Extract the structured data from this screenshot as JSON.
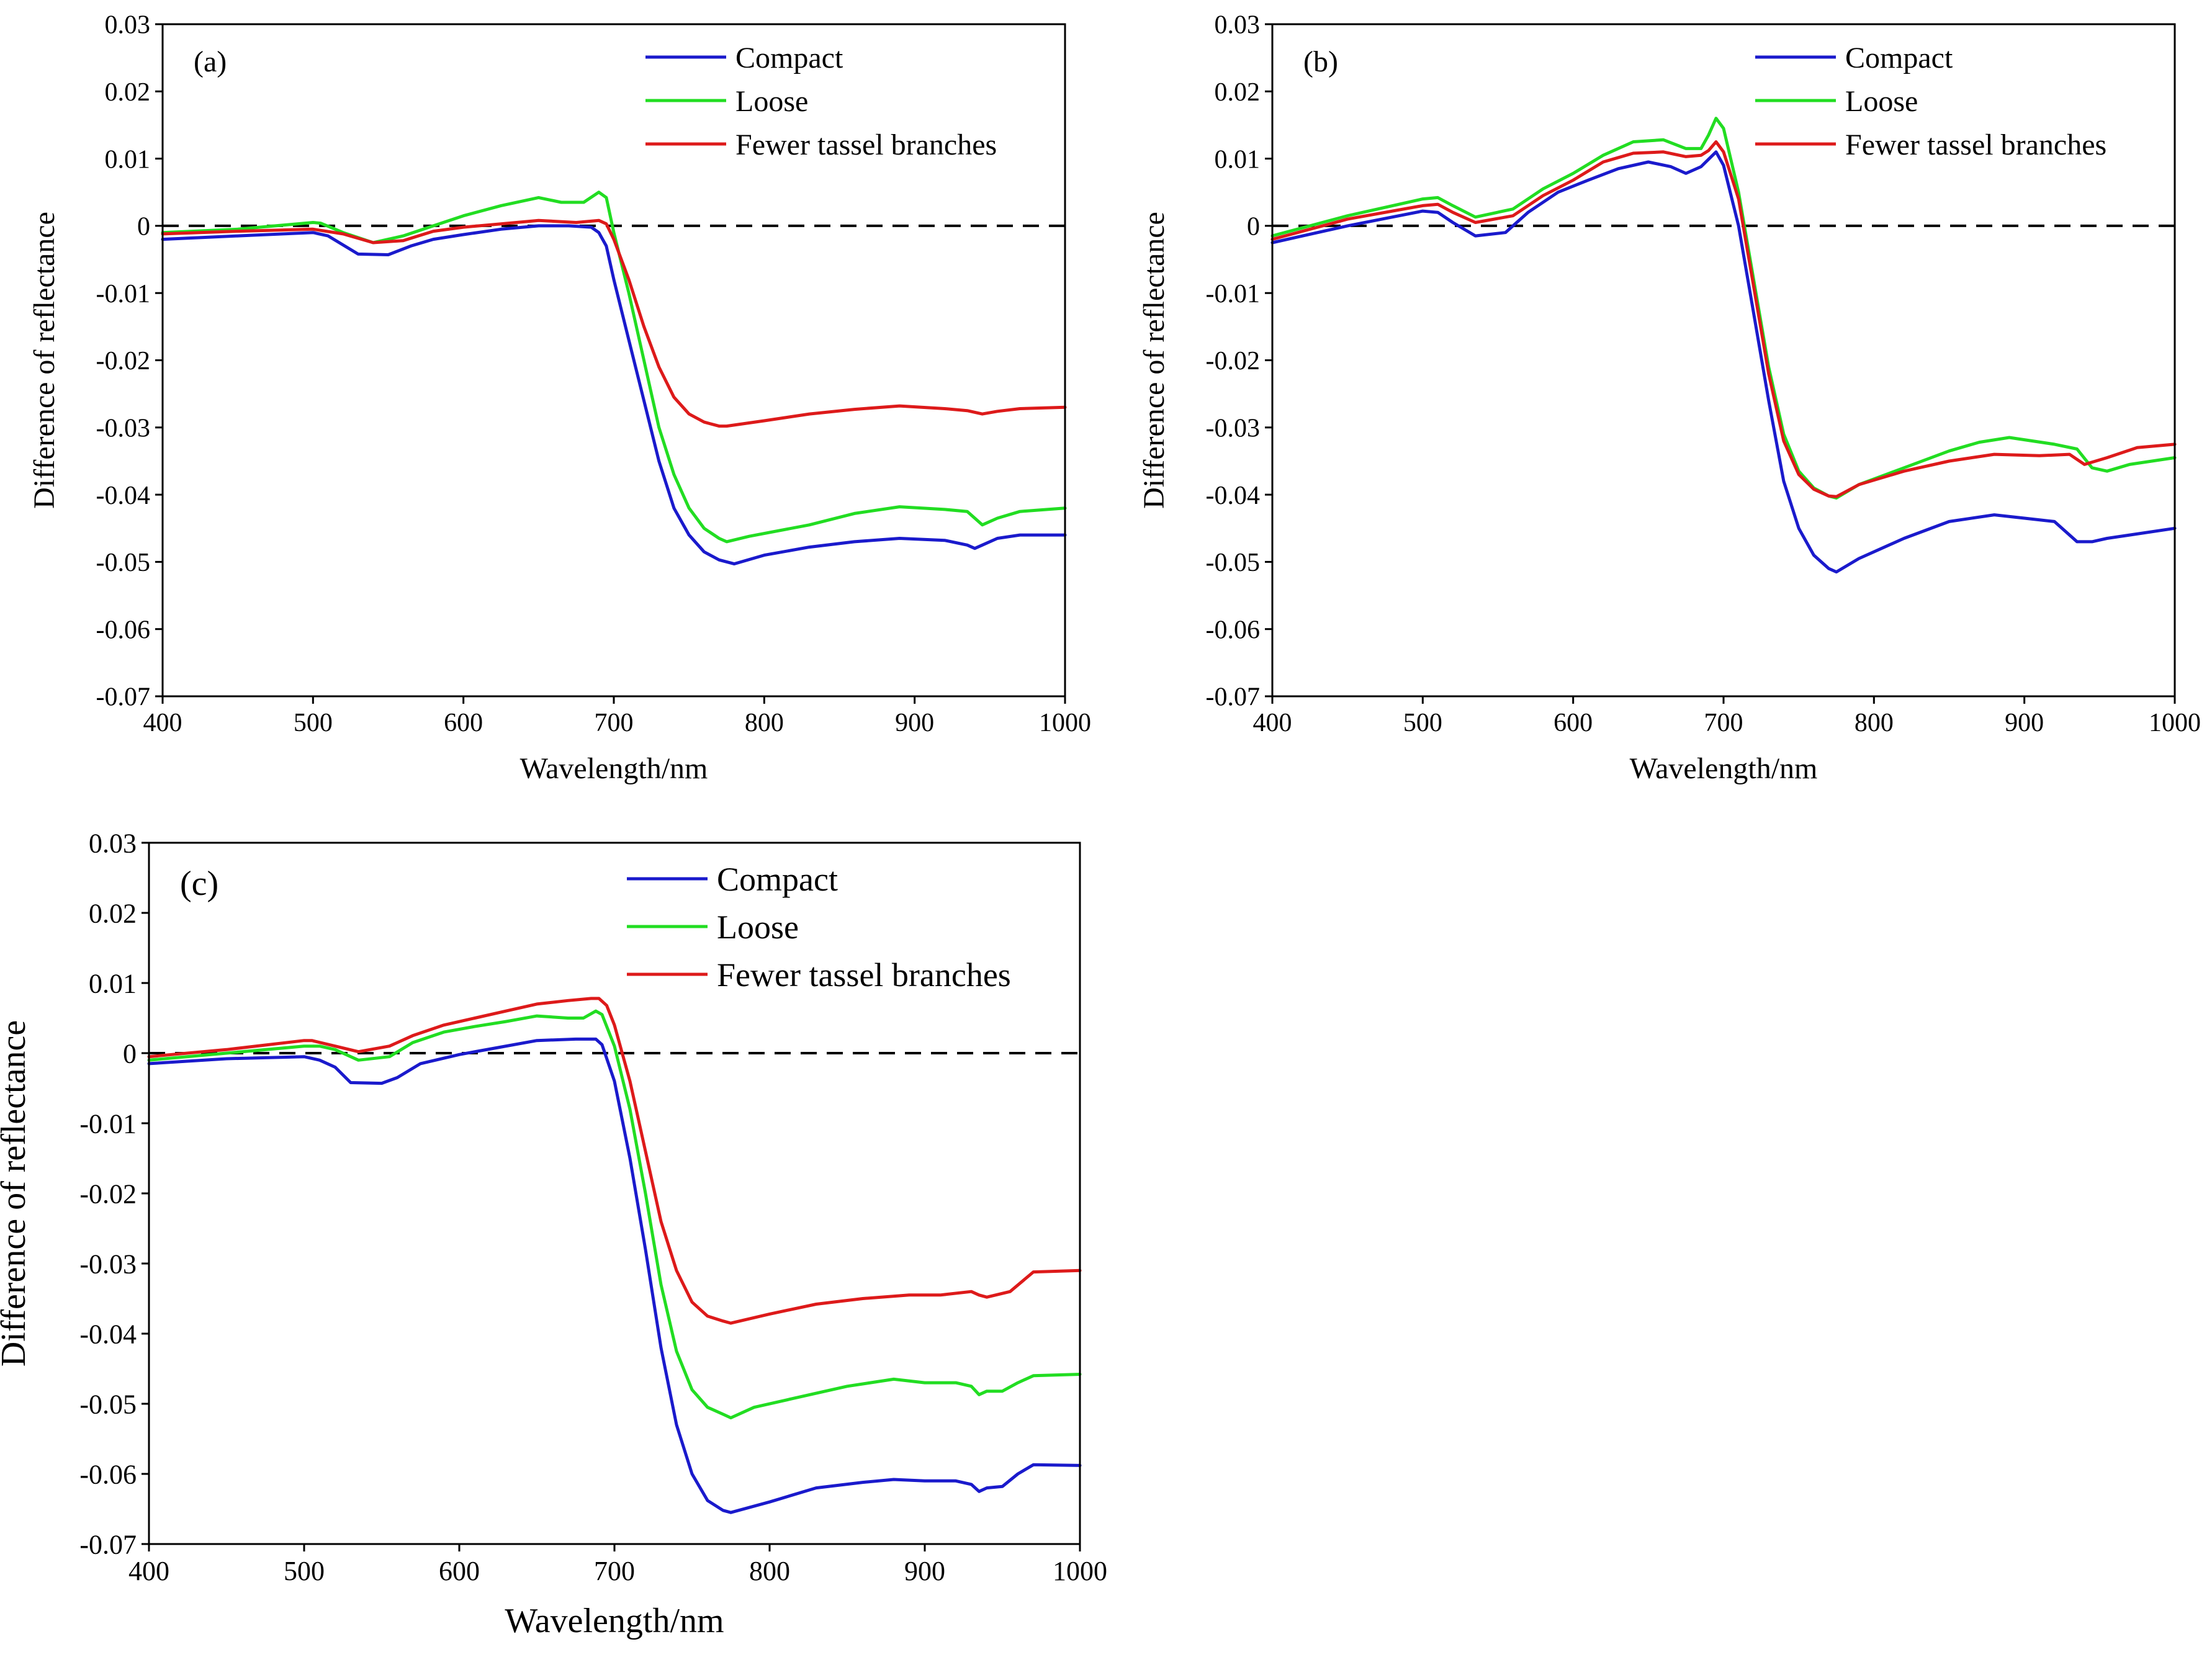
{
  "chart_data": [
    {
      "id": "a",
      "type": "line",
      "panel_label": "(a)",
      "xlabel": "Wavelength/nm",
      "ylabel": "Difference of reflectance",
      "xlim": [
        400,
        1000
      ],
      "ylim": [
        -0.07,
        0.03
      ],
      "xticks": [
        "400",
        "500",
        "600",
        "700",
        "800",
        "900",
        "1000"
      ],
      "yticks": [
        "0.03",
        "0.02",
        "0.01",
        "0",
        "-0.01",
        "-0.02",
        "-0.03",
        "-0.04",
        "-0.05",
        "-0.06",
        "-0.07"
      ],
      "reference_line_y": 0,
      "legend_position": "top-right",
      "series": [
        {
          "name": "Compact",
          "color": "#1a1acc",
          "x": [
            400,
            450,
            500,
            510,
            530,
            550,
            565,
            580,
            600,
            625,
            650,
            670,
            685,
            690,
            695,
            700,
            710,
            720,
            730,
            740,
            750,
            760,
            770,
            780,
            800,
            830,
            860,
            890,
            920,
            935,
            940,
            945,
            955,
            970,
            1000
          ],
          "y": [
            -0.002,
            -0.0015,
            -0.001,
            -0.0015,
            -0.0042,
            -0.0043,
            -0.003,
            -0.002,
            -0.0013,
            -0.0005,
            0,
            0,
            -0.0002,
            -0.001,
            -0.003,
            -0.008,
            -0.017,
            -0.026,
            -0.035,
            -0.042,
            -0.046,
            -0.0485,
            -0.0497,
            -0.0503,
            -0.049,
            -0.0478,
            -0.047,
            -0.0465,
            -0.0468,
            -0.0475,
            -0.048,
            -0.0475,
            -0.0465,
            -0.046,
            -0.046
          ]
        },
        {
          "name": "Loose",
          "color": "#22dd22",
          "x": [
            400,
            450,
            500,
            505,
            520,
            540,
            560,
            580,
            600,
            625,
            650,
            665,
            680,
            690,
            695,
            700,
            710,
            720,
            730,
            740,
            750,
            760,
            770,
            775,
            790,
            830,
            860,
            890,
            920,
            935,
            945,
            955,
            970,
            1000
          ],
          "y": [
            -0.001,
            -0.0005,
            0.0005,
            0.0004,
            -0.001,
            -0.0025,
            -0.0015,
            0,
            0.0015,
            0.003,
            0.0042,
            0.0035,
            0.0035,
            0.005,
            0.0042,
            -0.001,
            -0.01,
            -0.02,
            -0.03,
            -0.037,
            -0.042,
            -0.045,
            -0.0465,
            -0.047,
            -0.0462,
            -0.0445,
            -0.0428,
            -0.0418,
            -0.0422,
            -0.0425,
            -0.0445,
            -0.0435,
            -0.0425,
            -0.042
          ]
        },
        {
          "name": "Fewer tassel branches",
          "color": "#dd1a1a",
          "x": [
            400,
            450,
            500,
            520,
            540,
            560,
            580,
            600,
            625,
            650,
            675,
            690,
            695,
            700,
            710,
            720,
            730,
            740,
            750,
            760,
            770,
            775,
            800,
            830,
            860,
            890,
            920,
            935,
            945,
            955,
            970,
            1000
          ],
          "y": [
            -0.0012,
            -0.0008,
            -0.0005,
            -0.0012,
            -0.0025,
            -0.0022,
            -0.0008,
            -0.0002,
            0.0003,
            0.0008,
            0.0005,
            0.0008,
            0.0003,
            -0.002,
            -0.008,
            -0.015,
            -0.021,
            -0.0255,
            -0.028,
            -0.0292,
            -0.0298,
            -0.0298,
            -0.029,
            -0.028,
            -0.0273,
            -0.0268,
            -0.0272,
            -0.0275,
            -0.028,
            -0.0276,
            -0.0272,
            -0.027
          ]
        }
      ]
    },
    {
      "id": "b",
      "type": "line",
      "panel_label": "(b)",
      "xlabel": "Wavelength/nm",
      "ylabel": "Difference of reflectance",
      "xlim": [
        400,
        1000
      ],
      "ylim": [
        -0.07,
        0.03
      ],
      "xticks": [
        "400",
        "500",
        "600",
        "700",
        "800",
        "900",
        "1000"
      ],
      "yticks": [
        "0.03",
        "0.02",
        "0.01",
        "0",
        "-0.01",
        "-0.02",
        "-0.03",
        "-0.04",
        "-0.05",
        "-0.06",
        "-0.07"
      ],
      "reference_line_y": 0,
      "legend_position": "top-right",
      "series": [
        {
          "name": "Compact",
          "color": "#1a1acc",
          "x": [
            400,
            450,
            500,
            510,
            520,
            535,
            555,
            570,
            590,
            610,
            630,
            650,
            665,
            675,
            685,
            695,
            700,
            710,
            720,
            730,
            740,
            750,
            760,
            770,
            775,
            790,
            820,
            850,
            880,
            900,
            920,
            935,
            945,
            955,
            970,
            1000
          ],
          "y": [
            -0.0025,
            0,
            0.0022,
            0.002,
            0.0005,
            -0.0015,
            -0.001,
            0.002,
            0.005,
            0.0068,
            0.0085,
            0.0095,
            0.0088,
            0.0078,
            0.0088,
            0.011,
            0.009,
            0,
            -0.013,
            -0.026,
            -0.038,
            -0.045,
            -0.049,
            -0.051,
            -0.0515,
            -0.0495,
            -0.0465,
            -0.044,
            -0.043,
            -0.0435,
            -0.044,
            -0.047,
            -0.047,
            -0.0465,
            -0.046,
            -0.045
          ]
        },
        {
          "name": "Loose",
          "color": "#22dd22",
          "x": [
            400,
            450,
            500,
            510,
            520,
            535,
            560,
            580,
            600,
            620,
            640,
            660,
            675,
            685,
            690,
            695,
            700,
            710,
            720,
            730,
            740,
            750,
            760,
            770,
            775,
            790,
            820,
            850,
            870,
            890,
            920,
            935,
            945,
            955,
            970,
            1000
          ],
          "y": [
            -0.0015,
            0.0015,
            0.004,
            0.0042,
            0.003,
            0.0013,
            0.0025,
            0.0055,
            0.0078,
            0.0105,
            0.0125,
            0.0128,
            0.0115,
            0.0115,
            0.0135,
            0.016,
            0.0145,
            0.005,
            -0.008,
            -0.021,
            -0.031,
            -0.0365,
            -0.039,
            -0.0402,
            -0.0405,
            -0.0385,
            -0.036,
            -0.0335,
            -0.0322,
            -0.0315,
            -0.0325,
            -0.0332,
            -0.036,
            -0.0365,
            -0.0355,
            -0.0345
          ]
        },
        {
          "name": "Fewer tassel branches",
          "color": "#dd1a1a",
          "x": [
            400,
            450,
            500,
            510,
            520,
            535,
            560,
            580,
            600,
            620,
            640,
            660,
            675,
            685,
            690,
            695,
            700,
            710,
            720,
            730,
            740,
            750,
            760,
            770,
            775,
            790,
            820,
            850,
            880,
            910,
            930,
            940,
            955,
            975,
            1000
          ],
          "y": [
            -0.002,
            0.001,
            0.003,
            0.0032,
            0.002,
            0.0005,
            0.0015,
            0.0045,
            0.0068,
            0.0095,
            0.0108,
            0.011,
            0.0103,
            0.0105,
            0.0112,
            0.0125,
            0.011,
            0.004,
            -0.009,
            -0.022,
            -0.032,
            -0.037,
            -0.0392,
            -0.0402,
            -0.0403,
            -0.0385,
            -0.0365,
            -0.035,
            -0.034,
            -0.0342,
            -0.034,
            -0.0355,
            -0.0345,
            -0.033,
            -0.0325
          ]
        }
      ]
    },
    {
      "id": "c",
      "type": "line",
      "panel_label": "(c)",
      "xlabel": "Wavelength/nm",
      "ylabel": "Difference of reflectance",
      "xlim": [
        400,
        1000
      ],
      "ylim": [
        -0.07,
        0.03
      ],
      "xticks": [
        "400",
        "500",
        "600",
        "700",
        "800",
        "900",
        "1000"
      ],
      "yticks": [
        "0.03",
        "0.02",
        "0.01",
        "0",
        "-0.01",
        "-0.02",
        "-0.03",
        "-0.04",
        "-0.05",
        "-0.06",
        "-0.07"
      ],
      "reference_line_y": 0,
      "legend_position": "top-right",
      "series": [
        {
          "name": "Compact",
          "color": "#1a1acc",
          "x": [
            400,
            450,
            500,
            510,
            520,
            530,
            550,
            560,
            575,
            600,
            625,
            650,
            675,
            688,
            692,
            700,
            710,
            720,
            730,
            740,
            750,
            760,
            770,
            775,
            800,
            830,
            860,
            880,
            900,
            920,
            930,
            935,
            940,
            950,
            960,
            970,
            1000
          ],
          "y": [
            -0.0015,
            -0.0008,
            -0.0005,
            -0.001,
            -0.002,
            -0.0042,
            -0.0043,
            -0.0035,
            -0.0015,
            -0.0002,
            0.0008,
            0.0018,
            0.002,
            0.002,
            0.0012,
            -0.004,
            -0.015,
            -0.028,
            -0.042,
            -0.053,
            -0.06,
            -0.0638,
            -0.0652,
            -0.0655,
            -0.064,
            -0.062,
            -0.0612,
            -0.0608,
            -0.061,
            -0.061,
            -0.0615,
            -0.0625,
            -0.062,
            -0.0618,
            -0.06,
            -0.0587,
            -0.0588
          ]
        },
        {
          "name": "Loose",
          "color": "#22dd22",
          "x": [
            400,
            450,
            500,
            510,
            520,
            535,
            555,
            570,
            590,
            610,
            630,
            650,
            670,
            680,
            688,
            692,
            700,
            710,
            720,
            730,
            740,
            750,
            760,
            770,
            775,
            790,
            820,
            850,
            880,
            900,
            920,
            930,
            935,
            940,
            950,
            960,
            970,
            1000
          ],
          "y": [
            -0.001,
            0,
            0.001,
            0.001,
            0.0005,
            -0.001,
            -0.0005,
            0.0015,
            0.003,
            0.0038,
            0.0045,
            0.0053,
            0.005,
            0.005,
            0.006,
            0.0055,
            0.001,
            -0.008,
            -0.02,
            -0.033,
            -0.0425,
            -0.048,
            -0.0505,
            -0.0515,
            -0.052,
            -0.0505,
            -0.049,
            -0.0475,
            -0.0465,
            -0.047,
            -0.047,
            -0.0475,
            -0.0487,
            -0.0482,
            -0.0482,
            -0.047,
            -0.046,
            -0.0458
          ]
        },
        {
          "name": "Fewer tassel branches",
          "color": "#dd1a1a",
          "x": [
            400,
            450,
            500,
            505,
            520,
            535,
            555,
            570,
            590,
            610,
            630,
            650,
            670,
            685,
            690,
            695,
            700,
            710,
            720,
            730,
            740,
            750,
            760,
            770,
            775,
            800,
            830,
            860,
            890,
            910,
            930,
            935,
            940,
            955,
            970,
            1000
          ],
          "y": [
            -0.0005,
            0.0005,
            0.0018,
            0.0018,
            0.001,
            0.0002,
            0.001,
            0.0025,
            0.004,
            0.005,
            0.006,
            0.007,
            0.0075,
            0.0078,
            0.0078,
            0.0068,
            0.004,
            -0.004,
            -0.014,
            -0.024,
            -0.031,
            -0.0355,
            -0.0375,
            -0.0382,
            -0.0385,
            -0.0372,
            -0.0358,
            -0.035,
            -0.0345,
            -0.0345,
            -0.034,
            -0.0345,
            -0.0348,
            -0.034,
            -0.0312,
            -0.031
          ]
        }
      ]
    }
  ]
}
